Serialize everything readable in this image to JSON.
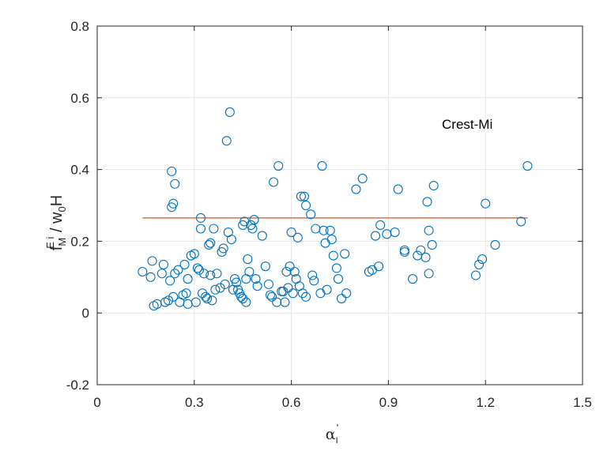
{
  "chart_data": {
    "type": "scatter",
    "title": "",
    "annotation": "Crest-Mi",
    "xlabel": {
      "base": "α",
      "sub": "I",
      "sup": "'"
    },
    "ylabel": {
      "f": "f",
      "f_sub": "M",
      "f_sup": "E i",
      "slash": " / w",
      "w_sub": "0",
      "tail": "H"
    },
    "xlim": [
      0,
      1.5
    ],
    "ylim": [
      -0.2,
      0.8
    ],
    "x_ticks": [
      "0",
      "0.3",
      "0.6",
      "0.9",
      "1.2",
      "1.5"
    ],
    "y_ticks": [
      "-0.2",
      "0",
      "0.2",
      "0.4",
      "0.6",
      "0.8"
    ],
    "grid": true,
    "colors": {
      "points": "#0072BD",
      "mean_line": "#D95319",
      "grid": "#e6e6e6",
      "axes": "#262626"
    },
    "mean_line": {
      "x": [
        0.14,
        1.33
      ],
      "y": 0.265
    },
    "points": [
      [
        0.14,
        0.115
      ],
      [
        0.165,
        0.1
      ],
      [
        0.17,
        0.145
      ],
      [
        0.175,
        0.02
      ],
      [
        0.185,
        0.025
      ],
      [
        0.2,
        0.11
      ],
      [
        0.205,
        0.135
      ],
      [
        0.21,
        0.03
      ],
      [
        0.22,
        0.035
      ],
      [
        0.225,
        0.09
      ],
      [
        0.23,
        0.395
      ],
      [
        0.23,
        0.295
      ],
      [
        0.235,
        0.305
      ],
      [
        0.235,
        0.045
      ],
      [
        0.24,
        0.36
      ],
      [
        0.24,
        0.11
      ],
      [
        0.25,
        0.12
      ],
      [
        0.255,
        0.03
      ],
      [
        0.265,
        0.05
      ],
      [
        0.27,
        0.135
      ],
      [
        0.275,
        0.055
      ],
      [
        0.28,
        0.095
      ],
      [
        0.28,
        0.025
      ],
      [
        0.29,
        0.16
      ],
      [
        0.3,
        0.165
      ],
      [
        0.305,
        0.03
      ],
      [
        0.31,
        0.125
      ],
      [
        0.315,
        0.12
      ],
      [
        0.32,
        0.265
      ],
      [
        0.32,
        0.235
      ],
      [
        0.325,
        0.055
      ],
      [
        0.33,
        0.11
      ],
      [
        0.335,
        0.045
      ],
      [
        0.34,
        0.04
      ],
      [
        0.345,
        0.19
      ],
      [
        0.35,
        0.195
      ],
      [
        0.35,
        0.105
      ],
      [
        0.355,
        0.035
      ],
      [
        0.36,
        0.235
      ],
      [
        0.365,
        0.065
      ],
      [
        0.37,
        0.11
      ],
      [
        0.38,
        0.07
      ],
      [
        0.385,
        0.17
      ],
      [
        0.39,
        0.18
      ],
      [
        0.395,
        0.08
      ],
      [
        0.4,
        0.48
      ],
      [
        0.405,
        0.225
      ],
      [
        0.41,
        0.56
      ],
      [
        0.415,
        0.205
      ],
      [
        0.42,
        0.065
      ],
      [
        0.425,
        0.095
      ],
      [
        0.43,
        0.085
      ],
      [
        0.435,
        0.065
      ],
      [
        0.44,
        0.055
      ],
      [
        0.445,
        0.045
      ],
      [
        0.45,
        0.245
      ],
      [
        0.45,
        0.04
      ],
      [
        0.455,
        0.255
      ],
      [
        0.46,
        0.095
      ],
      [
        0.46,
        0.03
      ],
      [
        0.465,
        0.15
      ],
      [
        0.47,
        0.115
      ],
      [
        0.475,
        0.245
      ],
      [
        0.48,
        0.235
      ],
      [
        0.485,
        0.26
      ],
      [
        0.49,
        0.095
      ],
      [
        0.495,
        0.075
      ],
      [
        0.51,
        0.215
      ],
      [
        0.52,
        0.13
      ],
      [
        0.53,
        0.08
      ],
      [
        0.535,
        0.05
      ],
      [
        0.54,
        0.045
      ],
      [
        0.545,
        0.365
      ],
      [
        0.555,
        0.03
      ],
      [
        0.56,
        0.41
      ],
      [
        0.57,
        0.06
      ],
      [
        0.575,
        0.06
      ],
      [
        0.58,
        0.03
      ],
      [
        0.585,
        0.115
      ],
      [
        0.59,
        0.07
      ],
      [
        0.595,
        0.13
      ],
      [
        0.6,
        0.225
      ],
      [
        0.605,
        0.055
      ],
      [
        0.61,
        0.115
      ],
      [
        0.615,
        0.095
      ],
      [
        0.62,
        0.21
      ],
      [
        0.625,
        0.075
      ],
      [
        0.63,
        0.325
      ],
      [
        0.635,
        0.055
      ],
      [
        0.64,
        0.325
      ],
      [
        0.645,
        0.045
      ],
      [
        0.645,
        0.3
      ],
      [
        0.66,
        0.275
      ],
      [
        0.665,
        0.105
      ],
      [
        0.67,
        0.09
      ],
      [
        0.675,
        0.235
      ],
      [
        0.69,
        0.055
      ],
      [
        0.695,
        0.41
      ],
      [
        0.7,
        0.23
      ],
      [
        0.705,
        0.195
      ],
      [
        0.71,
        0.065
      ],
      [
        0.72,
        0.23
      ],
      [
        0.725,
        0.205
      ],
      [
        0.73,
        0.16
      ],
      [
        0.74,
        0.125
      ],
      [
        0.745,
        0.095
      ],
      [
        0.755,
        0.04
      ],
      [
        0.765,
        0.165
      ],
      [
        0.77,
        0.055
      ],
      [
        0.8,
        0.345
      ],
      [
        0.82,
        0.375
      ],
      [
        0.84,
        0.115
      ],
      [
        0.85,
        0.12
      ],
      [
        0.86,
        0.215
      ],
      [
        0.87,
        0.13
      ],
      [
        0.875,
        0.245
      ],
      [
        0.895,
        0.22
      ],
      [
        0.92,
        0.225
      ],
      [
        0.93,
        0.345
      ],
      [
        0.95,
        0.175
      ],
      [
        0.95,
        0.17
      ],
      [
        0.975,
        0.095
      ],
      [
        0.99,
        0.16
      ],
      [
        1.0,
        0.175
      ],
      [
        1.015,
        0.155
      ],
      [
        1.02,
        0.31
      ],
      [
        1.025,
        0.23
      ],
      [
        1.025,
        0.11
      ],
      [
        1.035,
        0.19
      ],
      [
        1.04,
        0.355
      ],
      [
        1.17,
        0.105
      ],
      [
        1.18,
        0.135
      ],
      [
        1.19,
        0.15
      ],
      [
        1.2,
        0.305
      ],
      [
        1.23,
        0.19
      ],
      [
        1.31,
        0.255
      ],
      [
        1.33,
        0.41
      ]
    ]
  }
}
